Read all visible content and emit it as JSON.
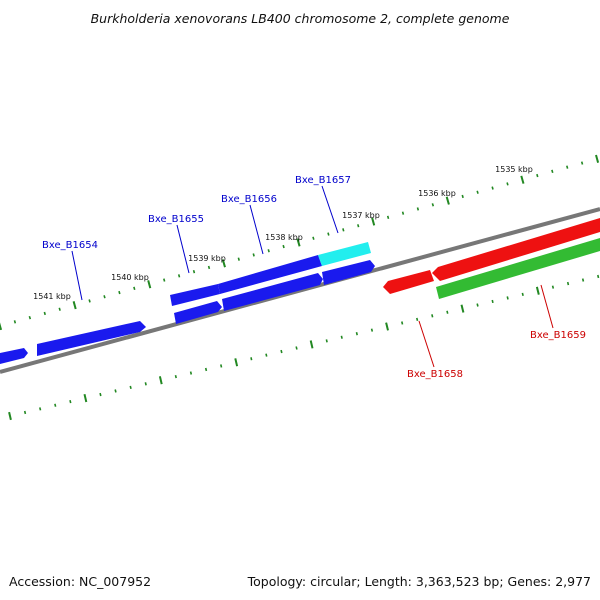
{
  "title": "Burkholderia xenovorans LB400 chromosome 2, complete genome",
  "footer": {
    "accession": "Accession: NC_007952",
    "summary": "Topology: circular; Length: 3,363,523 bp; Genes: 2,977"
  },
  "colors": {
    "forward_cds": "#1a1aee",
    "highlight_cds": "#22eeee",
    "reverse_cds": "#ee1111",
    "reverse_other": "#33bb33",
    "backbone": "#777777",
    "tick": "#228822",
    "label_blue": "#0000cc",
    "label_red": "#cc0000"
  },
  "tick_labels": [
    "1535 kbp",
    "1536 kbp",
    "1537 kbp",
    "1538 kbp",
    "1539 kbp",
    "1540 kbp",
    "1541 kbp"
  ],
  "gene_labels": [
    {
      "name": "Bxe_B1654",
      "strand": "forward"
    },
    {
      "name": "Bxe_B1655",
      "strand": "forward"
    },
    {
      "name": "Bxe_B1656",
      "strand": "forward"
    },
    {
      "name": "Bxe_B1657",
      "strand": "forward"
    },
    {
      "name": "Bxe_B1658",
      "strand": "reverse"
    },
    {
      "name": "Bxe_B1659",
      "strand": "reverse"
    }
  ]
}
